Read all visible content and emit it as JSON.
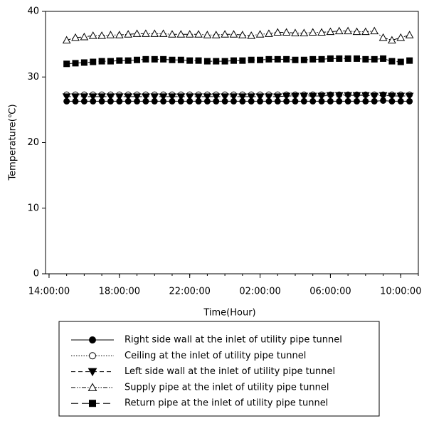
{
  "chart_data": {
    "type": "line",
    "x_label": "Time(Hour)",
    "y_label": "Temperature(℃)",
    "xlim": [
      13.8,
      35
    ],
    "ylim": [
      0,
      40
    ],
    "xticks": [
      {
        "value": 14,
        "label": "14:00:00"
      },
      {
        "value": 18,
        "label": "18:00:00"
      },
      {
        "value": 22,
        "label": "22:00:00"
      },
      {
        "value": 26,
        "label": "02:00:00"
      },
      {
        "value": 30,
        "label": "06:00:00"
      },
      {
        "value": 34,
        "label": "10:00:00"
      }
    ],
    "yticks": [
      0,
      10,
      20,
      30,
      40
    ],
    "grid": false,
    "legend": "below",
    "x": [
      15,
      15.5,
      16,
      16.5,
      17,
      17.5,
      18,
      18.5,
      19,
      19.5,
      20,
      20.5,
      21,
      21.5,
      22,
      22.5,
      23,
      23.5,
      24,
      24.5,
      25,
      25.5,
      26,
      26.5,
      27,
      27.5,
      28,
      28.5,
      29,
      29.5,
      30,
      30.5,
      31,
      31.5,
      32,
      32.5,
      33,
      33.5,
      34,
      34.5
    ],
    "series": [
      {
        "name": "Right side wall at the inlet of utility pipe tunnel",
        "color": "#000000",
        "marker": "circle",
        "marker_fill": true,
        "line_style": "solid",
        "values": [
          26.3,
          26.3,
          26.3,
          26.3,
          26.3,
          26.3,
          26.3,
          26.3,
          26.3,
          26.3,
          26.3,
          26.3,
          26.3,
          26.3,
          26.3,
          26.3,
          26.3,
          26.3,
          26.3,
          26.3,
          26.3,
          26.3,
          26.3,
          26.3,
          26.3,
          26.3,
          26.3,
          26.3,
          26.3,
          26.3,
          26.3,
          26.3,
          26.3,
          26.3,
          26.3,
          26.3,
          26.4,
          26.3,
          26.3,
          26.3
        ]
      },
      {
        "name": "Ceiling at the inlet of utility pipe tunnel",
        "color": "#000000",
        "marker": "circle",
        "marker_fill": false,
        "line_style": "dotted",
        "values": [
          27.3,
          27.3,
          27.3,
          27.3,
          27.3,
          27.3,
          27.3,
          27.3,
          27.3,
          27.3,
          27.3,
          27.3,
          27.3,
          27.3,
          27.3,
          27.3,
          27.3,
          27.3,
          27.3,
          27.3,
          27.3,
          27.3,
          27.3,
          27.3,
          27.3,
          27.3,
          27.3,
          27.3,
          27.3,
          27.3,
          27.3,
          27.3,
          27.3,
          27.3,
          27.3,
          27.3,
          27.3,
          27.3,
          27.3,
          27.3
        ]
      },
      {
        "name": "Left side wall at the inlet of utility pipe tunnel",
        "color": "#000000",
        "marker": "triangle-down",
        "marker_fill": true,
        "line_style": "dashed",
        "values": [
          27.0,
          27.0,
          27.0,
          27.0,
          27.0,
          27.0,
          27.0,
          27.0,
          27.0,
          27.0,
          27.0,
          27.0,
          27.0,
          27.0,
          27.0,
          27.0,
          27.0,
          27.0,
          27.0,
          27.0,
          27.0,
          27.0,
          27.0,
          27.0,
          27.0,
          27.1,
          27.1,
          27.1,
          27.1,
          27.1,
          27.2,
          27.2,
          27.2,
          27.2,
          27.2,
          27.1,
          27.2,
          27.1,
          27.1,
          27.1
        ]
      },
      {
        "name": "Supply pipe at the inlet of utility pipe tunnel",
        "color": "#000000",
        "marker": "triangle-up",
        "marker_fill": false,
        "line_style": "dash-dot",
        "values": [
          35.6,
          36.0,
          36.1,
          36.3,
          36.3,
          36.4,
          36.4,
          36.5,
          36.6,
          36.6,
          36.6,
          36.6,
          36.5,
          36.5,
          36.5,
          36.5,
          36.4,
          36.4,
          36.5,
          36.5,
          36.4,
          36.3,
          36.5,
          36.6,
          36.8,
          36.8,
          36.7,
          36.7,
          36.8,
          36.8,
          36.9,
          37.0,
          37.0,
          36.9,
          36.9,
          37.0,
          36.0,
          35.6,
          36.0,
          36.4
        ]
      },
      {
        "name": "Return pipe at the inlet of utility pipe tunnel",
        "color": "#000000",
        "marker": "square",
        "marker_fill": true,
        "line_style": "long-dash",
        "values": [
          32.0,
          32.1,
          32.2,
          32.3,
          32.4,
          32.4,
          32.5,
          32.5,
          32.6,
          32.7,
          32.7,
          32.7,
          32.6,
          32.6,
          32.5,
          32.5,
          32.4,
          32.4,
          32.4,
          32.5,
          32.5,
          32.6,
          32.6,
          32.7,
          32.7,
          32.7,
          32.6,
          32.6,
          32.7,
          32.7,
          32.8,
          32.8,
          32.8,
          32.8,
          32.7,
          32.7,
          32.8,
          32.4,
          32.3,
          32.5
        ]
      }
    ]
  }
}
